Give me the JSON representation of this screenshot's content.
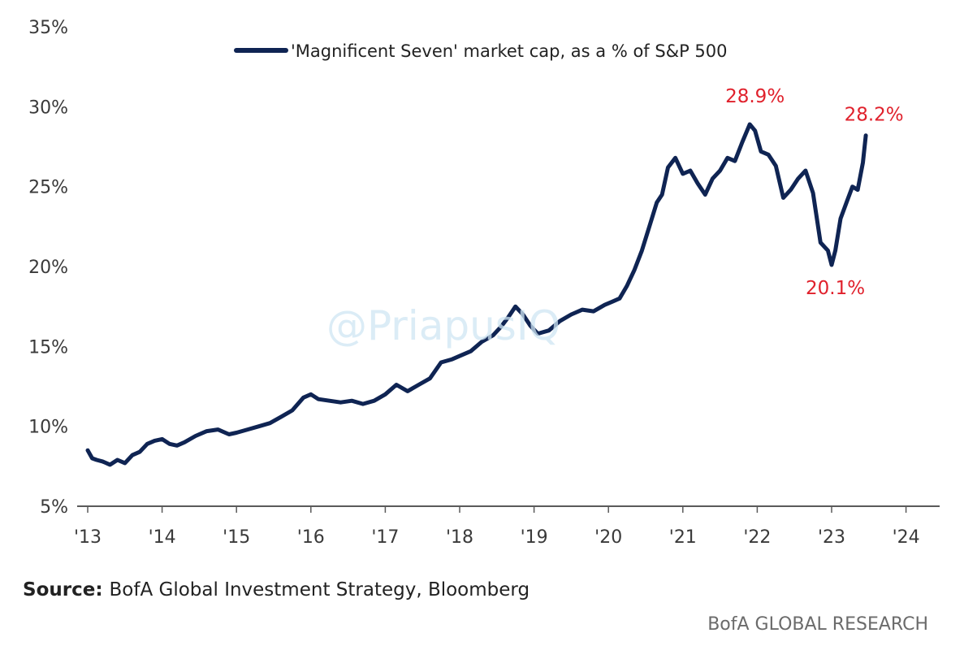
{
  "chart_data": {
    "type": "line",
    "title": "",
    "xlabel": "",
    "ylabel": "",
    "x_ticks": [
      "'13",
      "'14",
      "'15",
      "'16",
      "'17",
      "'18",
      "'19",
      "'20",
      "'21",
      "'22",
      "'23",
      "'24"
    ],
    "x_tick_values": [
      2013,
      2014,
      2015,
      2016,
      2017,
      2018,
      2019,
      2020,
      2021,
      2022,
      2023,
      2024
    ],
    "xlim": [
      2013,
      2024.2
    ],
    "y_ticks": [
      "5%",
      "10%",
      "15%",
      "20%",
      "25%",
      "30%",
      "35%"
    ],
    "y_tick_values": [
      5,
      10,
      15,
      20,
      25,
      30,
      35
    ],
    "ylim": [
      5,
      35
    ],
    "grid": false,
    "legend_position": "top-center",
    "series": [
      {
        "name": "'Magnificent Seven' market cap, as a % of S&P 500",
        "color": "#0f2453",
        "x": [
          2013.0,
          2013.06,
          2013.12,
          2013.2,
          2013.3,
          2013.4,
          2013.5,
          2013.6,
          2013.7,
          2013.8,
          2013.9,
          2014.0,
          2014.1,
          2014.2,
          2014.3,
          2014.45,
          2014.6,
          2014.75,
          2014.9,
          2015.0,
          2015.15,
          2015.3,
          2015.45,
          2015.6,
          2015.75,
          2015.9,
          2016.0,
          2016.1,
          2016.25,
          2016.4,
          2016.55,
          2016.7,
          2016.85,
          2017.0,
          2017.15,
          2017.3,
          2017.45,
          2017.6,
          2017.75,
          2017.9,
          2018.0,
          2018.15,
          2018.3,
          2018.45,
          2018.55,
          2018.65,
          2018.75,
          2018.85,
          2018.95,
          2019.05,
          2019.2,
          2019.35,
          2019.5,
          2019.65,
          2019.8,
          2019.95,
          2020.05,
          2020.15,
          2020.25,
          2020.35,
          2020.45,
          2020.55,
          2020.65,
          2020.72,
          2020.8,
          2020.9,
          2021.0,
          2021.1,
          2021.2,
          2021.3,
          2021.4,
          2021.5,
          2021.6,
          2021.7,
          2021.8,
          2021.9,
          2021.97,
          2022.05,
          2022.15,
          2022.25,
          2022.35,
          2022.45,
          2022.55,
          2022.65,
          2022.75,
          2022.85,
          2022.95,
          2023.0,
          2023.05,
          2023.12,
          2023.2,
          2023.28,
          2023.35,
          2023.42,
          2023.46
        ],
        "values": [
          8.5,
          8.0,
          7.9,
          7.8,
          7.6,
          7.9,
          7.7,
          8.2,
          8.4,
          8.9,
          9.1,
          9.2,
          8.9,
          8.8,
          9.0,
          9.4,
          9.7,
          9.8,
          9.5,
          9.6,
          9.8,
          10.0,
          10.2,
          10.6,
          11.0,
          11.8,
          12.0,
          11.7,
          11.6,
          11.5,
          11.6,
          11.4,
          11.6,
          12.0,
          12.6,
          12.2,
          12.6,
          13.0,
          14.0,
          14.2,
          14.4,
          14.7,
          15.3,
          15.7,
          16.2,
          16.8,
          17.5,
          17.0,
          16.3,
          15.8,
          16.0,
          16.6,
          17.0,
          17.3,
          17.2,
          17.6,
          17.8,
          18.0,
          18.8,
          19.8,
          21.0,
          22.5,
          24.0,
          24.5,
          26.2,
          26.8,
          25.8,
          26.0,
          25.2,
          24.5,
          25.5,
          26.0,
          26.8,
          26.6,
          27.8,
          28.9,
          28.5,
          27.2,
          27.0,
          26.3,
          24.3,
          24.8,
          25.5,
          26.0,
          24.6,
          21.5,
          21.0,
          20.1,
          21.0,
          23.0,
          24.0,
          25.0,
          24.8,
          26.5,
          28.2
        ]
      }
    ],
    "annotations": [
      {
        "text": "28.9%",
        "x": 2021.97,
        "y": 28.9,
        "color": "#e0212c"
      },
      {
        "text": "28.2%",
        "x": 2023.46,
        "y": 28.2,
        "color": "#e0212c"
      },
      {
        "text": "20.1%",
        "x": 2023.05,
        "y": 20.1,
        "color": "#e0212c"
      }
    ]
  },
  "footer": {
    "source_key": "Source:",
    "source_text": "BofA Global Investment Strategy, Bloomberg",
    "brand": "BofA GLOBAL RESEARCH"
  },
  "watermark": "@PriapusIQ"
}
